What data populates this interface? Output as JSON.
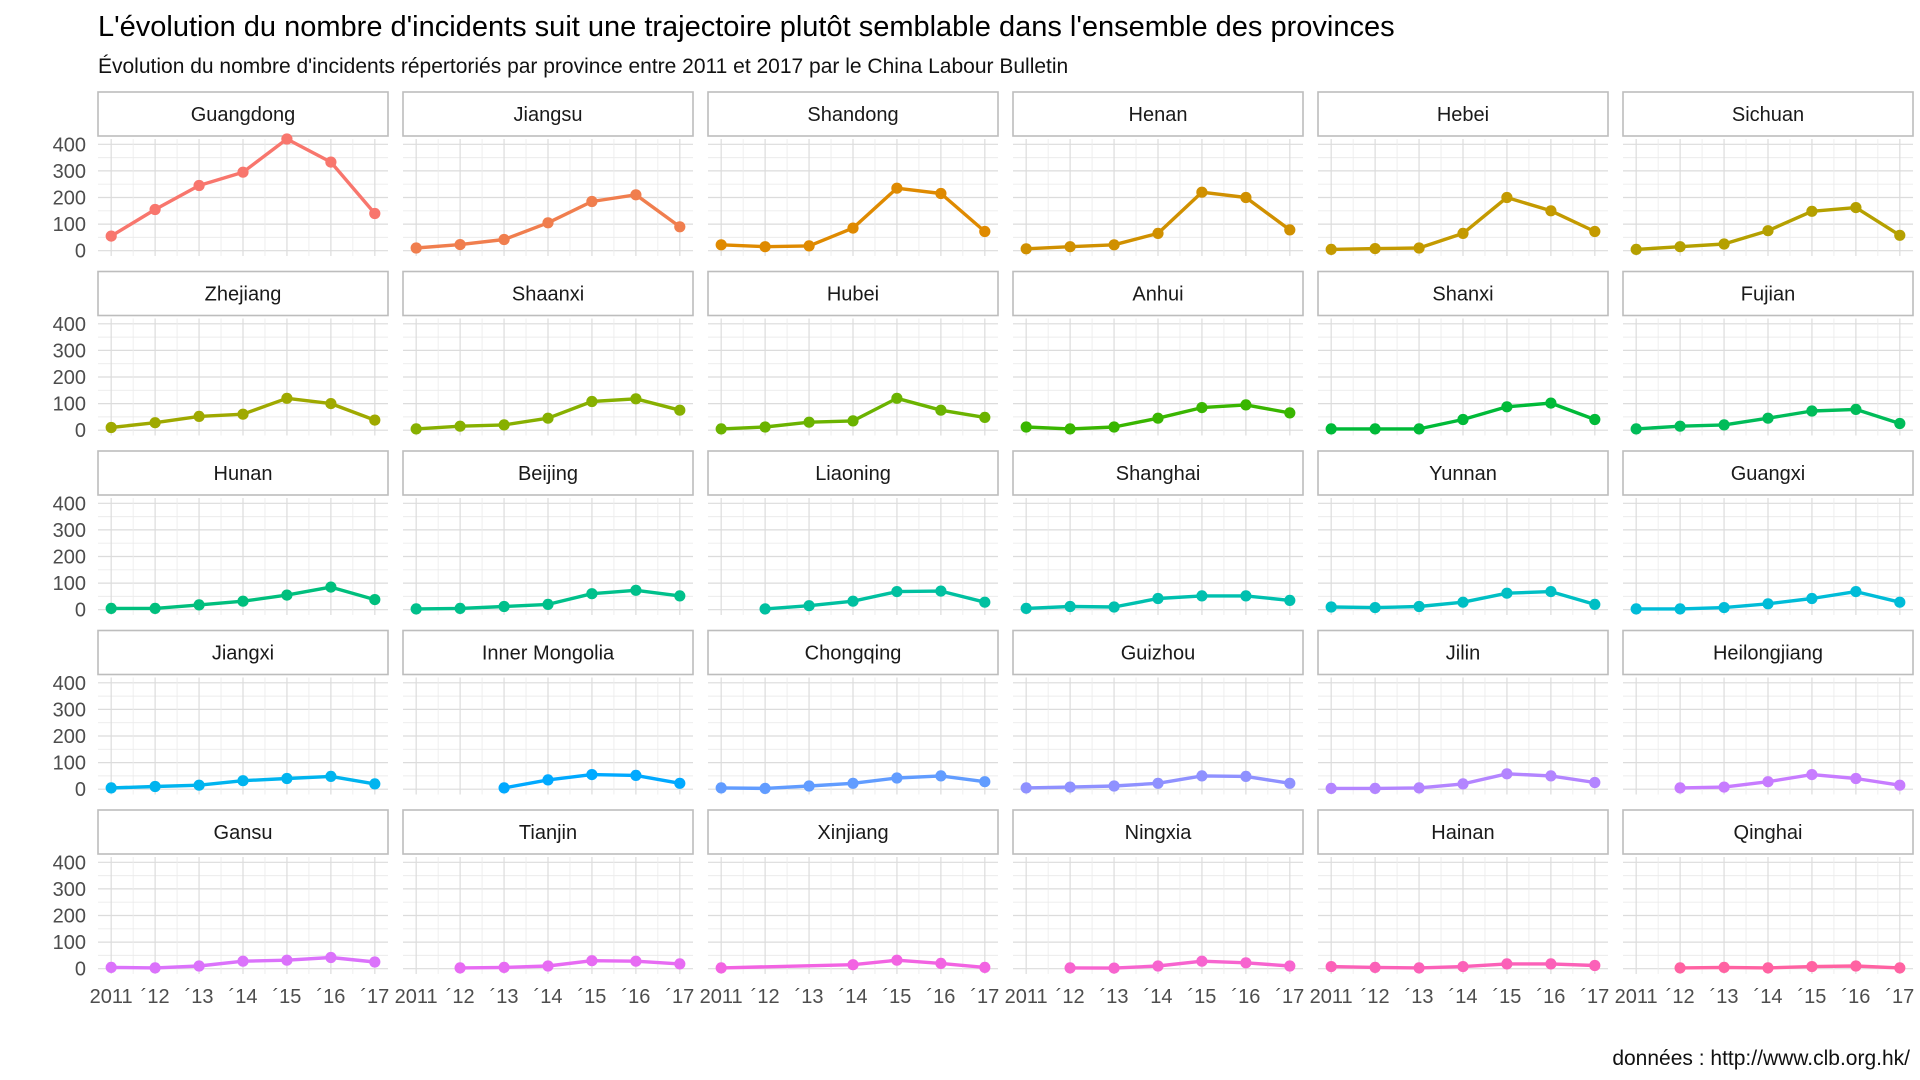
{
  "chart_data": {
    "type": "line",
    "title": "L'évolution du nombre d'incidents suit une trajectoire plutôt semblable dans l'ensemble des provinces",
    "subtitle": "Évolution du nombre d'incidents répertoriés par province entre 2011 et 2017 par le China Labour Bulletin",
    "caption": "données : http://www.clb.org.hk/",
    "x_tick_labels": [
      "2011",
      "´12",
      "´13",
      "´14",
      "´15",
      "´16",
      "´17"
    ],
    "x_values": [
      2011,
      2012,
      2013,
      2014,
      2015,
      2016,
      2017
    ],
    "y_ticks": [
      0,
      100,
      200,
      300,
      400
    ],
    "ylim": [
      -20,
      420
    ],
    "xlim": [
      2010.7,
      2017.3
    ],
    "grid": true,
    "legend": "none",
    "facets": [
      {
        "name": "Guangdong",
        "color": "#F8766D",
        "values": [
          55,
          155,
          245,
          295,
          420,
          333,
          140
        ]
      },
      {
        "name": "Jiangsu",
        "color": "#F07E4E",
        "values": [
          10,
          23,
          42,
          105,
          185,
          210,
          90
        ]
      },
      {
        "name": "Shandong",
        "color": "#DF8A00",
        "values": [
          22,
          15,
          18,
          85,
          235,
          215,
          72
        ]
      },
      {
        "name": "Henan",
        "color": "#D09000",
        "values": [
          7,
          15,
          22,
          65,
          220,
          200,
          78
        ]
      },
      {
        "name": "Hebei",
        "color": "#C49A00",
        "values": [
          5,
          8,
          10,
          65,
          200,
          150,
          72
        ]
      },
      {
        "name": "Sichuan",
        "color": "#B5A000",
        "values": [
          5,
          15,
          25,
          75,
          148,
          162,
          58
        ]
      },
      {
        "name": "Zhejiang",
        "color": "#9FA900",
        "values": [
          10,
          28,
          52,
          60,
          120,
          100,
          38
        ]
      },
      {
        "name": "Shaanxi",
        "color": "#87B000",
        "values": [
          5,
          15,
          20,
          45,
          108,
          118,
          75
        ]
      },
      {
        "name": "Hubei",
        "color": "#6BB300",
        "values": [
          5,
          12,
          30,
          35,
          120,
          75,
          48
        ]
      },
      {
        "name": "Anhui",
        "color": "#39B600",
        "values": [
          12,
          5,
          12,
          45,
          85,
          95,
          65
        ]
      },
      {
        "name": "Shanxi",
        "color": "#00BA38",
        "values": [
          5,
          5,
          5,
          40,
          88,
          102,
          40
        ]
      },
      {
        "name": "Fujian",
        "color": "#00BC59",
        "values": [
          5,
          15,
          20,
          45,
          72,
          78,
          25
        ]
      },
      {
        "name": "Hunan",
        "color": "#00BF7D",
        "values": [
          5,
          5,
          18,
          32,
          55,
          85,
          38
        ]
      },
      {
        "name": "Beijing",
        "color": "#00C08B",
        "values": [
          3,
          5,
          12,
          20,
          60,
          73,
          52
        ]
      },
      {
        "name": "Liaoning",
        "color": "#00C0A0",
        "values": [
          null,
          3,
          15,
          32,
          68,
          70,
          28
        ]
      },
      {
        "name": "Shanghai",
        "color": "#00C0AF",
        "values": [
          5,
          12,
          10,
          42,
          52,
          52,
          35
        ]
      },
      {
        "name": "Yunnan",
        "color": "#00BFC4",
        "values": [
          10,
          8,
          12,
          28,
          62,
          68,
          20
        ]
      },
      {
        "name": "Guangxi",
        "color": "#00BCD8",
        "values": [
          3,
          3,
          8,
          22,
          42,
          68,
          28
        ]
      },
      {
        "name": "Jiangxi",
        "color": "#00B4EF",
        "values": [
          5,
          10,
          15,
          32,
          40,
          48,
          20
        ]
      },
      {
        "name": "Inner Mongolia",
        "color": "#00A9FF",
        "values": [
          null,
          null,
          5,
          35,
          55,
          52,
          22
        ]
      },
      {
        "name": "Chongqing",
        "color": "#619CFF",
        "values": [
          5,
          3,
          12,
          22,
          42,
          50,
          28
        ]
      },
      {
        "name": "Guizhou",
        "color": "#8F91FF",
        "values": [
          5,
          8,
          12,
          22,
          50,
          48,
          22
        ]
      },
      {
        "name": "Jilin",
        "color": "#B385FF",
        "values": [
          3,
          3,
          5,
          20,
          58,
          50,
          25
        ]
      },
      {
        "name": "Heilongjiang",
        "color": "#C77CFF",
        "values": [
          null,
          5,
          8,
          28,
          55,
          40,
          15
        ]
      },
      {
        "name": "Gansu",
        "color": "#DB72FB",
        "values": [
          5,
          3,
          10,
          28,
          32,
          42,
          25
        ]
      },
      {
        "name": "Tianjin",
        "color": "#E76BF3",
        "values": [
          null,
          3,
          5,
          10,
          30,
          28,
          18
        ]
      },
      {
        "name": "Xinjiang",
        "color": "#F263E2",
        "values": [
          3,
          null,
          null,
          15,
          32,
          20,
          5
        ]
      },
      {
        "name": "Ningxia",
        "color": "#F764CF",
        "values": [
          null,
          3,
          2,
          10,
          28,
          22,
          10
        ]
      },
      {
        "name": "Hainan",
        "color": "#FB61B8",
        "values": [
          8,
          5,
          3,
          8,
          18,
          18,
          12
        ]
      },
      {
        "name": "Qinghai",
        "color": "#FF62A2",
        "values": [
          null,
          3,
          5,
          3,
          8,
          10,
          3
        ]
      }
    ]
  }
}
